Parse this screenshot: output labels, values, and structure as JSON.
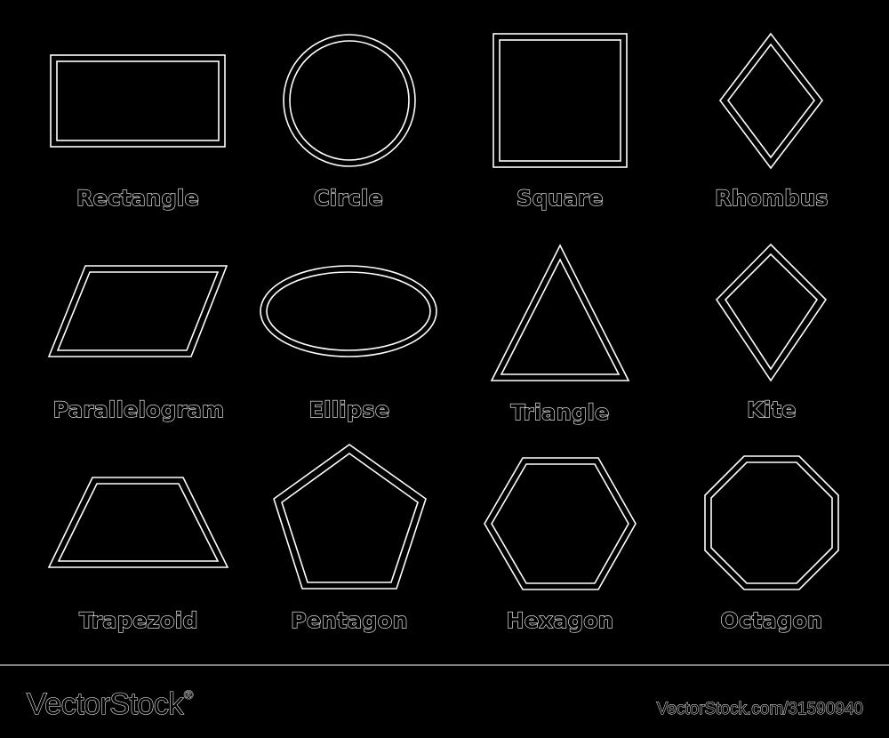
{
  "shapes": {
    "rectangle": "Rectangle",
    "circle": "Circle",
    "square": "Square",
    "rhombus": "Rhombus",
    "parallelogram": "Parallelogram",
    "ellipse": "Ellipse",
    "triangle": "Triangle",
    "kite": "Kite",
    "trapezoid": "Trapezoid",
    "pentagon": "Pentagon",
    "hexagon": "Hexagon",
    "octagon": "Octagon"
  },
  "footer": {
    "brand": "VectorStock",
    "registered_mark": "®",
    "url": "VectorStock.com/31590940"
  },
  "colors": {
    "background": "#000000",
    "line": "#ffffff"
  }
}
